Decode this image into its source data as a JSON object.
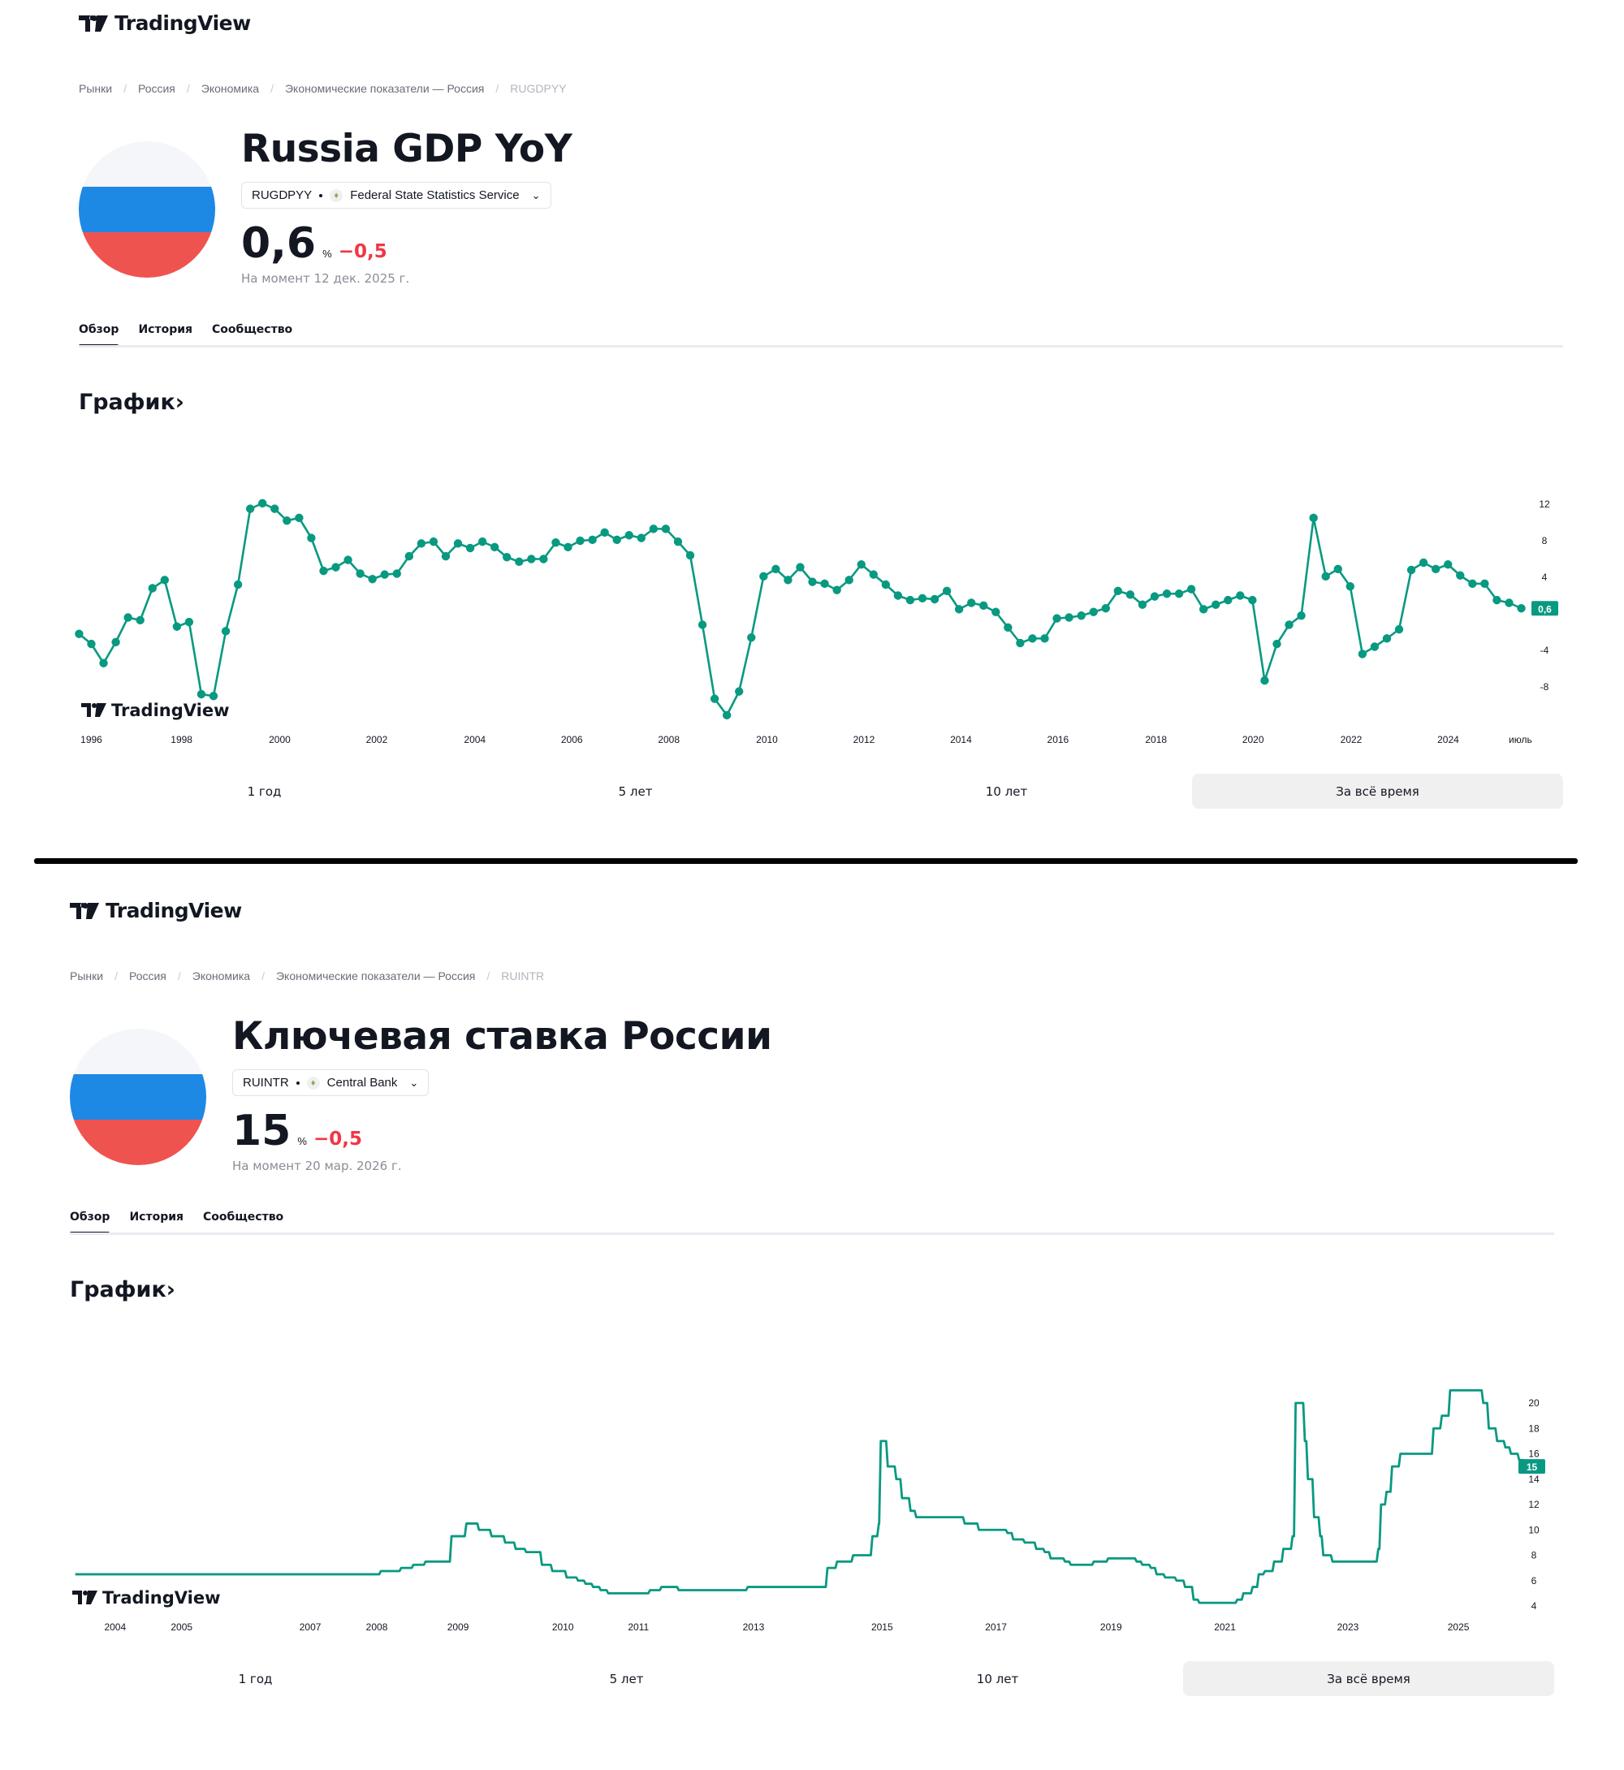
{
  "brand": "TradingView",
  "colors": {
    "line": "#089981",
    "negative": "#f23645",
    "flag_white": "#f4f6fa",
    "flag_blue": "#1e88e5",
    "flag_red": "#ef5350"
  },
  "pages": [
    {
      "breadcrumbs": [
        "Рынки",
        "Россия",
        "Экономика",
        "Экономические показатели — Россия",
        "RUGDPYY"
      ],
      "title": "Russia GDP YoY",
      "symbol": "RUGDPYY",
      "source": "Federal State Statistics Service",
      "value": "0,6",
      "unit": "%",
      "change": "−0,5",
      "as_of": "На момент 12 дек. 2025 г.",
      "tabs": [
        "Обзор",
        "История",
        "Сообщество"
      ],
      "chart_heading": "График›",
      "ranges": [
        "1 год",
        "5 лет",
        "10 лет",
        "За всё время"
      ],
      "active_range": 3
    },
    {
      "breadcrumbs": [
        "Рынки",
        "Россия",
        "Экономика",
        "Экономические показатели — Россия",
        "RUINTR"
      ],
      "title": "Ключевая ставка России",
      "symbol": "RUINTR",
      "source": "Central Bank",
      "value": "15",
      "unit": "%",
      "change": "−0,5",
      "as_of": "На момент 20 мар. 2026 г.",
      "tabs": [
        "Обзор",
        "История",
        "Сообщество"
      ],
      "chart_heading": "График›",
      "ranges": [
        "1 год",
        "5 лет",
        "10 лет",
        "За всё время"
      ],
      "active_range": 3
    }
  ],
  "chart_data": [
    {
      "type": "line",
      "title": "Russia GDP YoY",
      "ylabel": "%",
      "x_start": 1995.88,
      "x_end": 2025.5,
      "ylim": [
        -11,
        13
      ],
      "y_ticks": [
        "12",
        "8",
        "4",
        "-4",
        "-8"
      ],
      "y_tick_values": [
        12,
        8,
        4,
        -4,
        -8
      ],
      "x_ticks": [
        "1996",
        "1998",
        "2000",
        "2002",
        "2004",
        "2006",
        "2008",
        "2010",
        "2012",
        "2014",
        "2016",
        "2018",
        "2020",
        "2022",
        "2024",
        "июль"
      ],
      "last_value_label": "0,6",
      "values": [
        -2.2,
        -3.3,
        -5.4,
        -3.1,
        -0.4,
        -0.7,
        2.8,
        3.7,
        -1.4,
        -0.9,
        -8.8,
        -9.0,
        -1.9,
        3.2,
        11.5,
        12.1,
        11.5,
        10.2,
        10.5,
        8.3,
        4.7,
        5.1,
        5.9,
        4.4,
        3.8,
        4.3,
        4.4,
        6.3,
        7.7,
        7.9,
        6.3,
        7.7,
        7.2,
        7.9,
        7.3,
        6.2,
        5.7,
        6.0,
        6.0,
        7.8,
        7.3,
        8.0,
        8.1,
        8.9,
        8.1,
        8.6,
        8.3,
        9.3,
        9.3,
        7.9,
        6.4,
        -1.2,
        -9.3,
        -11.1,
        -8.5,
        -2.6,
        4.1,
        4.9,
        3.7,
        5.1,
        3.5,
        3.3,
        2.6,
        3.7,
        5.4,
        4.3,
        3.2,
        2.0,
        1.5,
        1.7,
        1.6,
        2.5,
        0.5,
        1.2,
        0.9,
        0.2,
        -1.5,
        -3.2,
        -2.7,
        -2.7,
        -0.5,
        -0.4,
        -0.2,
        0.2,
        0.6,
        2.5,
        2.1,
        1.0,
        1.9,
        2.2,
        2.2,
        2.7,
        0.5,
        1.0,
        1.5,
        2.0,
        1.5,
        -7.3,
        -3.3,
        -1.2,
        -0.2,
        10.5,
        4.1,
        4.9,
        3.0,
        -4.4,
        -3.6,
        -2.7,
        -1.7,
        4.8,
        5.6,
        4.9,
        5.4,
        4.2,
        3.3,
        3.3,
        1.5,
        1.2,
        0.6
      ]
    },
    {
      "type": "line",
      "title": "Ключевая ставка России",
      "ylabel": "%",
      "ylim": [
        3.5,
        21.5
      ],
      "y_ticks": [
        "20",
        "18",
        "16",
        "14",
        "12",
        "10",
        "8",
        "6",
        "4"
      ],
      "y_tick_values": [
        20,
        18,
        16,
        14,
        12,
        10,
        8,
        6,
        4
      ],
      "x_ticks": [
        "2004",
        "2005",
        "2007",
        "2008",
        "2009",
        "2010",
        "2011",
        "2013",
        "2015",
        "2017",
        "2019",
        "2021",
        "2023",
        "2025"
      ],
      "x_tick_years": [
        2004,
        2005,
        2007,
        2008,
        2009,
        2010,
        2011,
        2013,
        2015,
        2017,
        2019,
        2021,
        2023,
        2025
      ],
      "last_value_label": "15",
      "points": [
        [
          2003.4,
          6.5
        ],
        [
          2008.05,
          6.75
        ],
        [
          2008.3,
          7.0
        ],
        [
          2008.45,
          7.25
        ],
        [
          2008.6,
          7.5
        ],
        [
          2008.92,
          9.5
        ],
        [
          2009.08,
          10.5
        ],
        [
          2009.2,
          10.0
        ],
        [
          2009.32,
          9.5
        ],
        [
          2009.45,
          9.0
        ],
        [
          2009.55,
          8.5
        ],
        [
          2009.65,
          8.25
        ],
        [
          2009.8,
          7.25
        ],
        [
          2009.9,
          6.75
        ],
        [
          2010.05,
          6.25
        ],
        [
          2010.2,
          6.0
        ],
        [
          2010.3,
          5.75
        ],
        [
          2010.4,
          5.5
        ],
        [
          2010.5,
          5.25
        ],
        [
          2010.6,
          5.0
        ],
        [
          2011.2,
          5.25
        ],
        [
          2011.4,
          5.5
        ],
        [
          2011.7,
          5.25
        ],
        [
          2012.9,
          5.5
        ],
        [
          2014.15,
          7.0
        ],
        [
          2014.3,
          7.5
        ],
        [
          2014.55,
          8.0
        ],
        [
          2014.85,
          9.5
        ],
        [
          2014.95,
          10.5
        ],
        [
          2014.98,
          17.0
        ],
        [
          2015.1,
          15.0
        ],
        [
          2015.25,
          14.0
        ],
        [
          2015.35,
          12.5
        ],
        [
          2015.5,
          11.5
        ],
        [
          2015.6,
          11.0
        ],
        [
          2016.45,
          10.5
        ],
        [
          2016.7,
          10.0
        ],
        [
          2017.2,
          9.75
        ],
        [
          2017.3,
          9.25
        ],
        [
          2017.5,
          9.0
        ],
        [
          2017.7,
          8.5
        ],
        [
          2017.85,
          8.25
        ],
        [
          2017.95,
          7.75
        ],
        [
          2018.2,
          7.5
        ],
        [
          2018.3,
          7.25
        ],
        [
          2018.7,
          7.5
        ],
        [
          2018.95,
          7.75
        ],
        [
          2019.45,
          7.5
        ],
        [
          2019.55,
          7.25
        ],
        [
          2019.7,
          7.0
        ],
        [
          2019.8,
          6.5
        ],
        [
          2019.95,
          6.25
        ],
        [
          2020.15,
          6.0
        ],
        [
          2020.3,
          5.5
        ],
        [
          2020.45,
          4.5
        ],
        [
          2020.55,
          4.25
        ],
        [
          2021.2,
          4.5
        ],
        [
          2021.3,
          5.0
        ],
        [
          2021.45,
          5.5
        ],
        [
          2021.55,
          6.5
        ],
        [
          2021.65,
          6.75
        ],
        [
          2021.8,
          7.5
        ],
        [
          2021.95,
          8.5
        ],
        [
          2022.1,
          9.5
        ],
        [
          2022.15,
          20.0
        ],
        [
          2022.3,
          17.0
        ],
        [
          2022.35,
          14.0
        ],
        [
          2022.45,
          11.0
        ],
        [
          2022.55,
          9.5
        ],
        [
          2022.6,
          8.0
        ],
        [
          2022.75,
          7.5
        ],
        [
          2023.55,
          8.5
        ],
        [
          2023.6,
          12.0
        ],
        [
          2023.7,
          13.0
        ],
        [
          2023.8,
          15.0
        ],
        [
          2023.95,
          16.0
        ],
        [
          2024.55,
          18.0
        ],
        [
          2024.7,
          19.0
        ],
        [
          2024.85,
          21.0
        ],
        [
          2025.45,
          20.0
        ],
        [
          2025.55,
          18.0
        ],
        [
          2025.7,
          17.0
        ],
        [
          2025.85,
          16.5
        ],
        [
          2025.95,
          16.0
        ],
        [
          2026.1,
          15.5
        ],
        [
          2026.2,
          15.0
        ]
      ]
    }
  ]
}
